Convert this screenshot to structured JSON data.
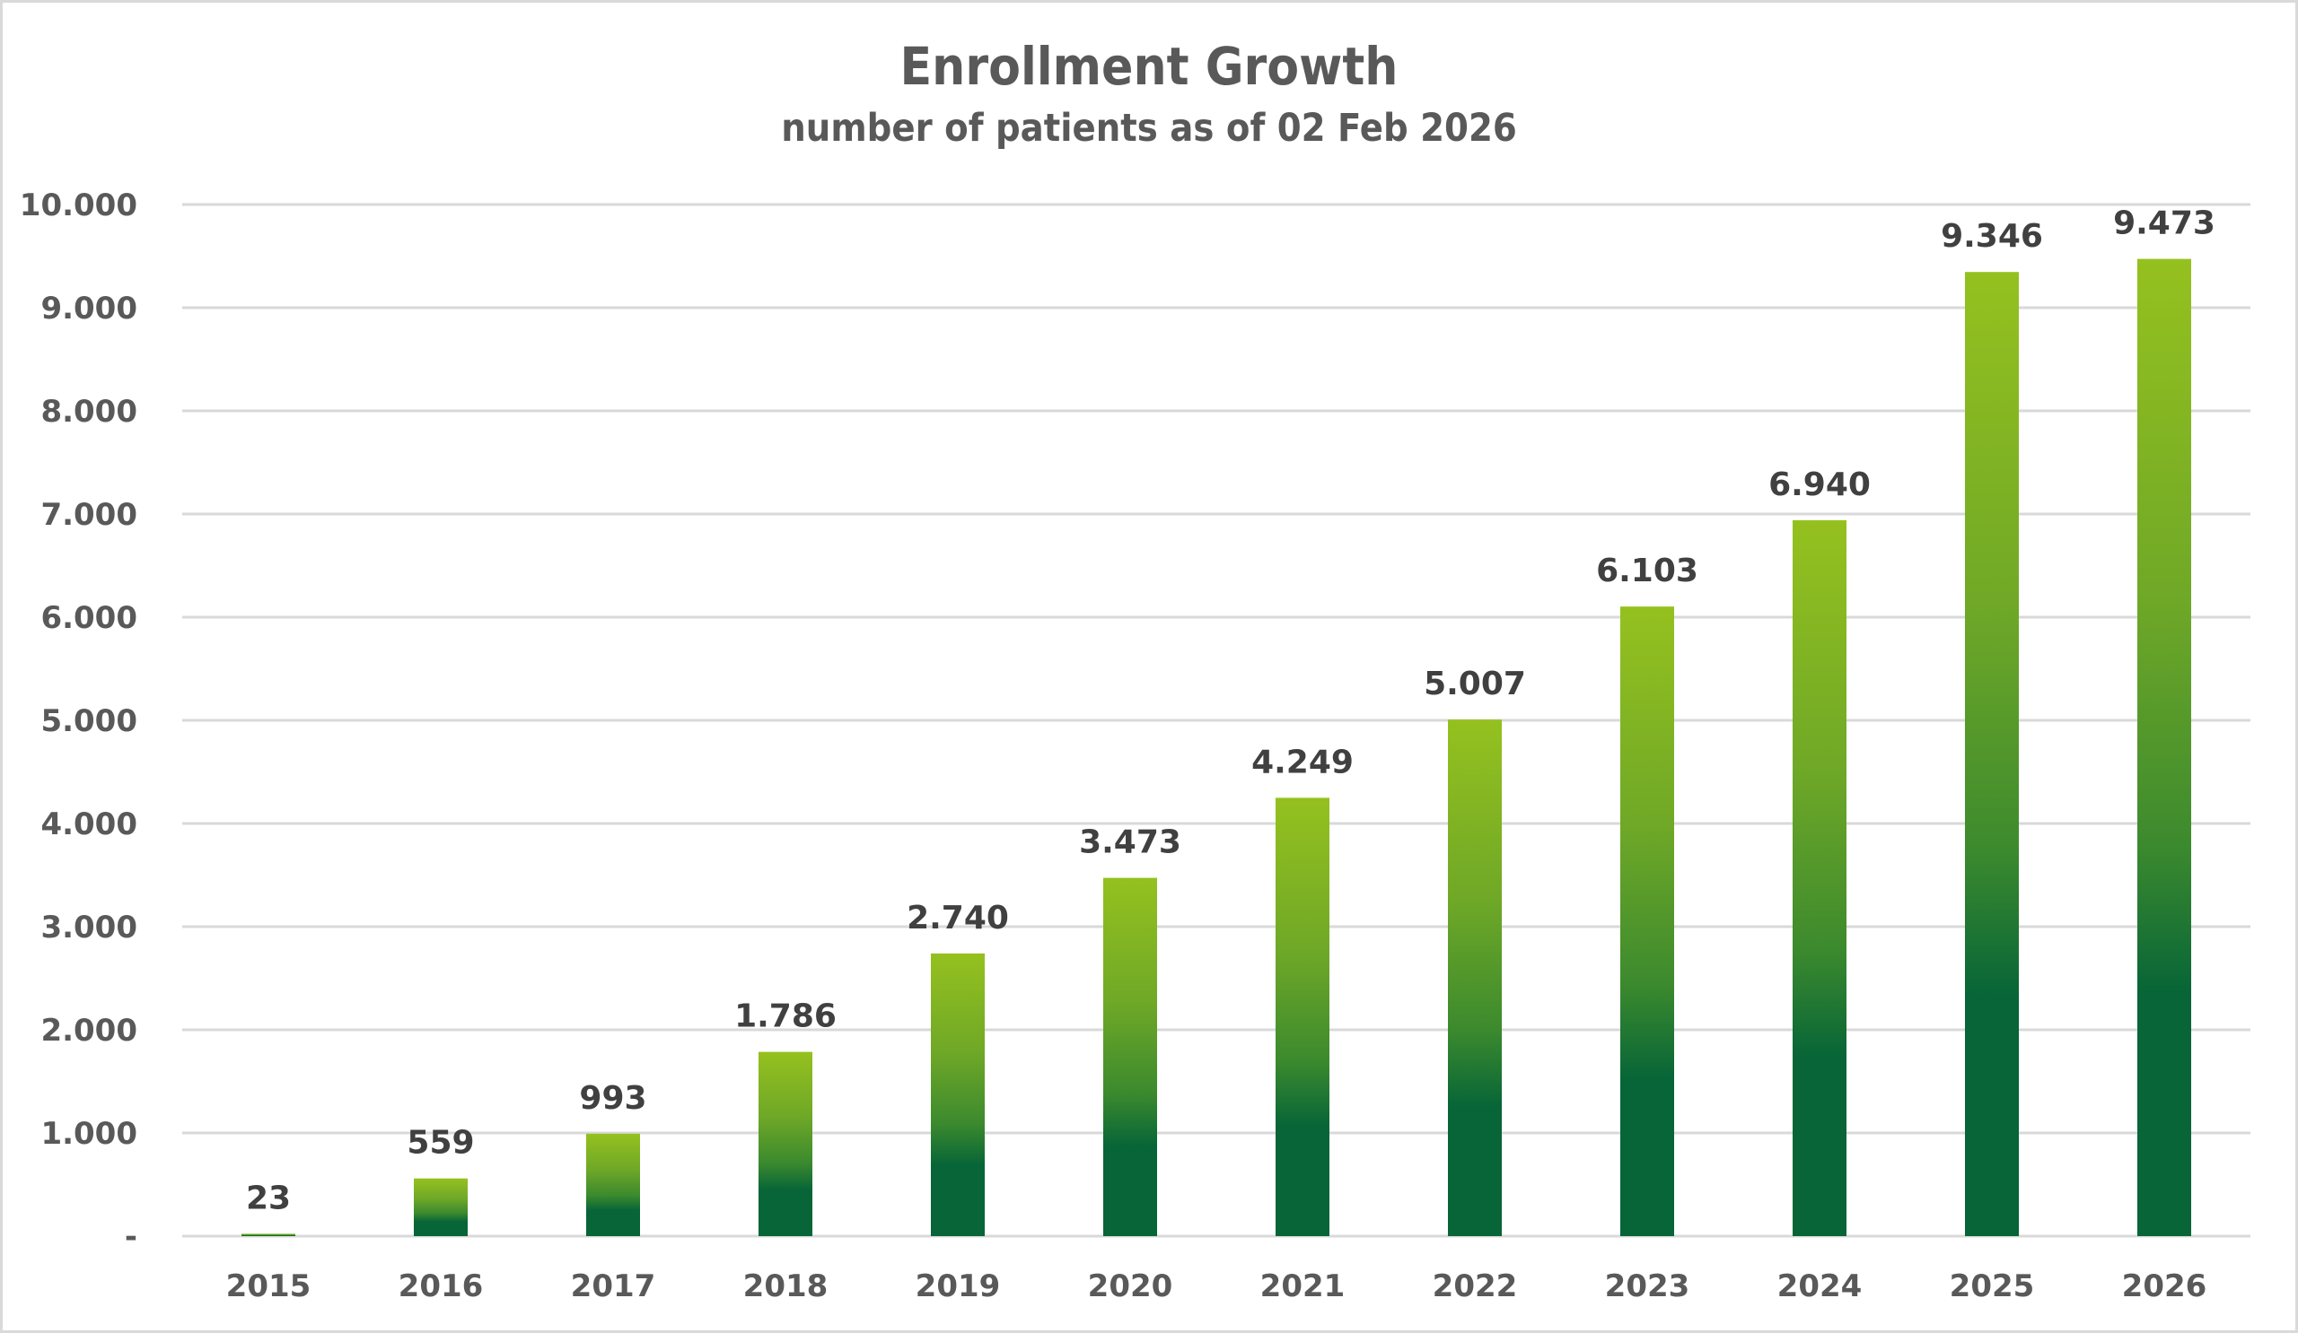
{
  "chart_data": {
    "type": "bar",
    "title": "Enrollment Growth",
    "subtitle": "number of patients as of 02 Feb 2026",
    "xlabel": "",
    "ylabel": "",
    "categories": [
      "2015",
      "2016",
      "2017",
      "2018",
      "2019",
      "2020",
      "2021",
      "2022",
      "2023",
      "2024",
      "2025",
      "2026"
    ],
    "values": [
      23,
      559,
      993,
      1786,
      2740,
      3473,
      4249,
      5007,
      6103,
      6940,
      9346,
      9473
    ],
    "data_labels": [
      "23",
      "559",
      "993",
      "1.786",
      "2.740",
      "3.473",
      "4.249",
      "5.007",
      "6.103",
      "6.940",
      "9.346",
      "9.473"
    ],
    "ylim": [
      0,
      10000
    ],
    "yticks": [
      0,
      1000,
      2000,
      3000,
      4000,
      5000,
      6000,
      7000,
      8000,
      9000,
      10000
    ],
    "ytick_labels": [
      "-",
      "1.000",
      "2.000",
      "3.000",
      "4.000",
      "5.000",
      "6.000",
      "7.000",
      "8.000",
      "9.000",
      "10.000"
    ],
    "grid": true,
    "legend": "none",
    "colors": {
      "bar_top": "#95c11f",
      "bar_mid": "#4e9a2c",
      "bar_bottom": "#076537",
      "gridline": "#d9d9d9",
      "frame": "#d9d9d9"
    }
  }
}
